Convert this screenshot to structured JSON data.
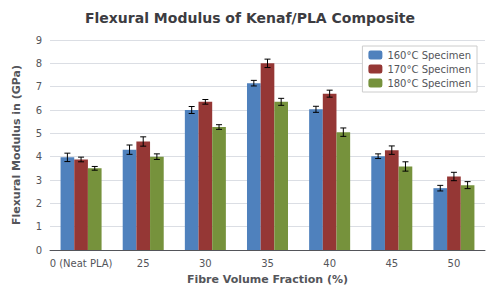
{
  "chart_data": {
    "type": "bar",
    "title": "Flexural Modulus of Kenaf/PLA Composite",
    "xlabel": "Fibre Volume Fraction (%)",
    "ylabel": "Flexural Modulus in (GPa)",
    "categories": [
      "0 (Neat PLA)",
      "25",
      "30",
      "35",
      "40",
      "45",
      "50"
    ],
    "series": [
      {
        "name": "160°C Specimen",
        "color": "#4F81BD",
        "values": [
          3.97,
          4.3,
          6.0,
          7.15,
          6.03,
          4.02,
          2.65
        ],
        "errors": [
          0.18,
          0.2,
          0.15,
          0.12,
          0.13,
          0.1,
          0.12
        ]
      },
      {
        "name": "170°C Specimen",
        "color": "#953735",
        "values": [
          3.88,
          4.65,
          6.35,
          8.0,
          6.7,
          4.28,
          3.15
        ],
        "errors": [
          0.1,
          0.2,
          0.1,
          0.18,
          0.15,
          0.18,
          0.18
        ]
      },
      {
        "name": "180°C Specimen",
        "color": "#76923C",
        "values": [
          3.5,
          4.0,
          5.27,
          6.35,
          5.05,
          3.58,
          2.78
        ],
        "errors": [
          0.08,
          0.12,
          0.1,
          0.15,
          0.18,
          0.2,
          0.15
        ]
      }
    ],
    "ylim": [
      0,
      9
    ],
    "yticks": [
      0,
      1,
      2,
      3,
      4,
      5,
      6,
      7,
      8,
      9
    ],
    "grid": true,
    "legend": "upper right"
  }
}
